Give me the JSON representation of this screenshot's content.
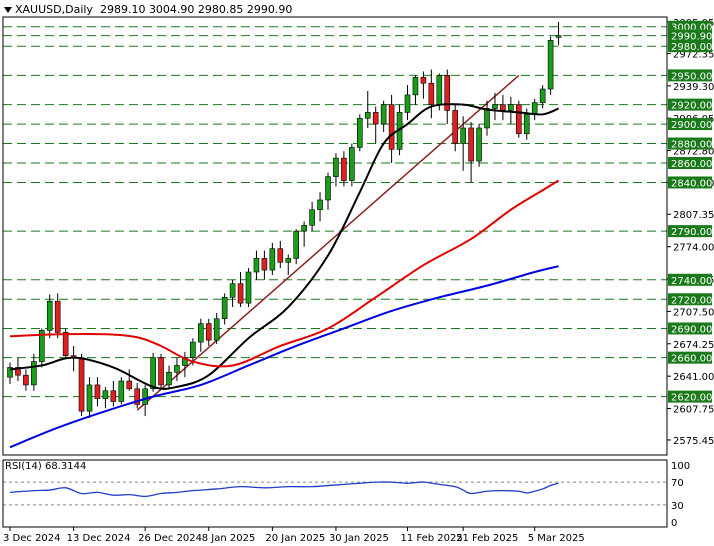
{
  "header": {
    "symbol": "XAUUSD,Daily",
    "ohlc": "2989.10 3004.90 2980.85 2990.90"
  },
  "rsi": {
    "label": "RSI(14) 68.3144"
  },
  "chart_data": {
    "type": "candlestick",
    "symbol": "XAUUSD",
    "timeframe": "Daily",
    "last_ohlc": {
      "open": 2989.1,
      "high": 3004.9,
      "low": 2980.85,
      "close": 2990.9
    },
    "price_axis": {
      "ylim": [
        2560,
        3010
      ],
      "ticks": [
        "3005.05",
        "2972.35",
        "2939.30",
        "2906.05",
        "2872.80",
        "2840.10",
        "2807.35",
        "2774.00",
        "2740.95",
        "2707.50",
        "2674.25",
        "2641.00",
        "2607.75",
        "2575.45"
      ]
    },
    "levels": [
      {
        "value": 3000.0,
        "label": "3000.00"
      },
      {
        "value": 2990.9,
        "label": "2990.90"
      },
      {
        "value": 2980.0,
        "label": "2980.00"
      },
      {
        "value": 2950.0,
        "label": "2950.00"
      },
      {
        "value": 2920.0,
        "label": "2920.00"
      },
      {
        "value": 2900.0,
        "label": "2900.00"
      },
      {
        "value": 2880.0,
        "label": "2880.00"
      },
      {
        "value": 2860.0,
        "label": "2860.00"
      },
      {
        "value": 2840.0,
        "label": "2840.00"
      },
      {
        "value": 2790.0,
        "label": "2790.00"
      },
      {
        "value": 2740.0,
        "label": "2740.00"
      },
      {
        "value": 2720.0,
        "label": "2720.00"
      },
      {
        "value": 2690.0,
        "label": "2690.00"
      },
      {
        "value": 2660.0,
        "label": "2660.00"
      },
      {
        "value": 2620.0,
        "label": "2620.00"
      }
    ],
    "x_labels": [
      {
        "index": 0,
        "label": "3 Dec 2024"
      },
      {
        "index": 8,
        "label": "13 Dec 2024"
      },
      {
        "index": 17,
        "label": "26 Dec 2024"
      },
      {
        "index": 25,
        "label": "8 Jan 2025"
      },
      {
        "index": 33,
        "label": "20 Jan 2025"
      },
      {
        "index": 41,
        "label": "30 Jan 2025"
      },
      {
        "index": 50,
        "label": "11 Feb 2025"
      },
      {
        "index": 57,
        "label": "21 Feb 2025"
      },
      {
        "index": 66,
        "label": "5 Mar 2025"
      }
    ],
    "candles": [
      [
        2640,
        2655,
        2633,
        2650
      ],
      [
        2650,
        2660,
        2636,
        2642
      ],
      [
        2642,
        2648,
        2626,
        2632
      ],
      [
        2632,
        2664,
        2626,
        2656
      ],
      [
        2656,
        2690,
        2650,
        2688
      ],
      [
        2688,
        2725,
        2680,
        2718
      ],
      [
        2718,
        2726,
        2680,
        2686
      ],
      [
        2686,
        2690,
        2660,
        2662
      ],
      [
        2662,
        2672,
        2646,
        2660
      ],
      [
        2660,
        2664,
        2600,
        2605
      ],
      [
        2605,
        2640,
        2598,
        2632
      ],
      [
        2632,
        2640,
        2610,
        2618
      ],
      [
        2618,
        2630,
        2608,
        2626
      ],
      [
        2626,
        2636,
        2610,
        2615
      ],
      [
        2615,
        2640,
        2612,
        2636
      ],
      [
        2636,
        2648,
        2626,
        2628
      ],
      [
        2628,
        2634,
        2608,
        2612
      ],
      [
        2612,
        2632,
        2600,
        2628
      ],
      [
        2628,
        2665,
        2625,
        2660
      ],
      [
        2660,
        2664,
        2628,
        2632
      ],
      [
        2632,
        2652,
        2628,
        2645
      ],
      [
        2645,
        2660,
        2636,
        2652
      ],
      [
        2652,
        2666,
        2640,
        2660
      ],
      [
        2660,
        2680,
        2652,
        2676
      ],
      [
        2676,
        2700,
        2666,
        2695
      ],
      [
        2695,
        2700,
        2672,
        2678
      ],
      [
        2678,
        2706,
        2674,
        2700
      ],
      [
        2700,
        2726,
        2694,
        2722
      ],
      [
        2722,
        2740,
        2712,
        2736
      ],
      [
        2736,
        2748,
        2712,
        2716
      ],
      [
        2716,
        2752,
        2712,
        2748
      ],
      [
        2748,
        2770,
        2740,
        2762
      ],
      [
        2762,
        2770,
        2740,
        2750
      ],
      [
        2750,
        2778,
        2745,
        2772
      ],
      [
        2772,
        2780,
        2752,
        2758
      ],
      [
        2758,
        2766,
        2745,
        2762
      ],
      [
        2762,
        2792,
        2756,
        2790
      ],
      [
        2790,
        2800,
        2774,
        2796
      ],
      [
        2796,
        2820,
        2790,
        2812
      ],
      [
        2812,
        2830,
        2800,
        2822
      ],
      [
        2822,
        2850,
        2812,
        2846
      ],
      [
        2846,
        2870,
        2836,
        2865
      ],
      [
        2865,
        2872,
        2836,
        2842
      ],
      [
        2842,
        2880,
        2836,
        2876
      ],
      [
        2876,
        2910,
        2872,
        2906
      ],
      [
        2906,
        2934,
        2896,
        2912
      ],
      [
        2912,
        2918,
        2880,
        2900
      ],
      [
        2900,
        2924,
        2892,
        2920
      ],
      [
        2920,
        2930,
        2860,
        2874
      ],
      [
        2874,
        2920,
        2868,
        2912
      ],
      [
        2912,
        2940,
        2904,
        2930
      ],
      [
        2930,
        2950,
        2920,
        2948
      ],
      [
        2948,
        2954,
        2926,
        2942
      ],
      [
        2942,
        2956,
        2906,
        2920
      ],
      [
        2920,
        2952,
        2914,
        2950
      ],
      [
        2950,
        2956,
        2900,
        2914
      ],
      [
        2914,
        2920,
        2872,
        2880
      ],
      [
        2880,
        2908,
        2852,
        2896
      ],
      [
        2896,
        2902,
        2840,
        2862
      ],
      [
        2862,
        2900,
        2856,
        2896
      ],
      [
        2896,
        2924,
        2888,
        2916
      ],
      [
        2916,
        2932,
        2904,
        2920
      ],
      [
        2920,
        2930,
        2904,
        2914
      ],
      [
        2914,
        2928,
        2900,
        2920
      ],
      [
        2920,
        2924,
        2886,
        2890
      ],
      [
        2890,
        2916,
        2884,
        2910
      ],
      [
        2910,
        2926,
        2904,
        2922
      ],
      [
        2922,
        2940,
        2916,
        2936
      ],
      [
        2936,
        2990,
        2930,
        2986
      ],
      [
        2989.1,
        3004.9,
        2980.85,
        2990.9
      ]
    ],
    "moving_averages": [
      {
        "color": "#000000",
        "anchors": [
          [
            0,
            2648
          ],
          [
            4,
            2652
          ],
          [
            8,
            2660
          ],
          [
            13,
            2650
          ],
          [
            18,
            2630
          ],
          [
            21,
            2630
          ],
          [
            25,
            2642
          ],
          [
            30,
            2680
          ],
          [
            35,
            2712
          ],
          [
            40,
            2765
          ],
          [
            44,
            2830
          ],
          [
            47,
            2880
          ],
          [
            50,
            2900
          ],
          [
            53,
            2918
          ],
          [
            57,
            2920
          ],
          [
            60,
            2915
          ],
          [
            64,
            2912
          ],
          [
            67,
            2910
          ],
          [
            69,
            2916
          ]
        ]
      },
      {
        "color": "#e00000",
        "anchors": [
          [
            0,
            2682
          ],
          [
            6,
            2684
          ],
          [
            12,
            2684
          ],
          [
            16,
            2681
          ],
          [
            19,
            2672
          ],
          [
            23,
            2656
          ],
          [
            28,
            2652
          ],
          [
            34,
            2672
          ],
          [
            40,
            2690
          ],
          [
            46,
            2722
          ],
          [
            52,
            2755
          ],
          [
            58,
            2782
          ],
          [
            63,
            2812
          ],
          [
            67,
            2832
          ],
          [
            69,
            2842
          ]
        ]
      },
      {
        "color": "#0000e0",
        "anchors": [
          [
            0,
            2568
          ],
          [
            6,
            2588
          ],
          [
            12,
            2605
          ],
          [
            18,
            2620
          ],
          [
            24,
            2632
          ],
          [
            30,
            2652
          ],
          [
            36,
            2672
          ],
          [
            42,
            2690
          ],
          [
            48,
            2708
          ],
          [
            54,
            2722
          ],
          [
            60,
            2734
          ],
          [
            66,
            2748
          ],
          [
            69,
            2754
          ]
        ]
      }
    ],
    "trendlines": [
      {
        "color": "#8b2020",
        "from": [
          16,
          2606
        ],
        "to": [
          64,
          2950
        ]
      }
    ],
    "rsi": {
      "value": 68.3144,
      "ylim": [
        0,
        100
      ],
      "levels": [
        70,
        30
      ],
      "ticks": [
        "100",
        "70",
        "30",
        "0"
      ],
      "anchors": [
        [
          0,
          52
        ],
        [
          3,
          55
        ],
        [
          5,
          56
        ],
        [
          7,
          60
        ],
        [
          9,
          50
        ],
        [
          11,
          52
        ],
        [
          13,
          47
        ],
        [
          15,
          48
        ],
        [
          17,
          45
        ],
        [
          19,
          50
        ],
        [
          21,
          52
        ],
        [
          23,
          55
        ],
        [
          26,
          58
        ],
        [
          29,
          62
        ],
        [
          32,
          60
        ],
        [
          35,
          62
        ],
        [
          38,
          62
        ],
        [
          41,
          65
        ],
        [
          44,
          68
        ],
        [
          46,
          70
        ],
        [
          48,
          70
        ],
        [
          50,
          68
        ],
        [
          52,
          70
        ],
        [
          54,
          66
        ],
        [
          56,
          62
        ],
        [
          57,
          56
        ],
        [
          58,
          50
        ],
        [
          60,
          54
        ],
        [
          62,
          55
        ],
        [
          64,
          54
        ],
        [
          65,
          51
        ],
        [
          66,
          54
        ],
        [
          67,
          58
        ],
        [
          68,
          64
        ],
        [
          69,
          68
        ]
      ]
    }
  }
}
